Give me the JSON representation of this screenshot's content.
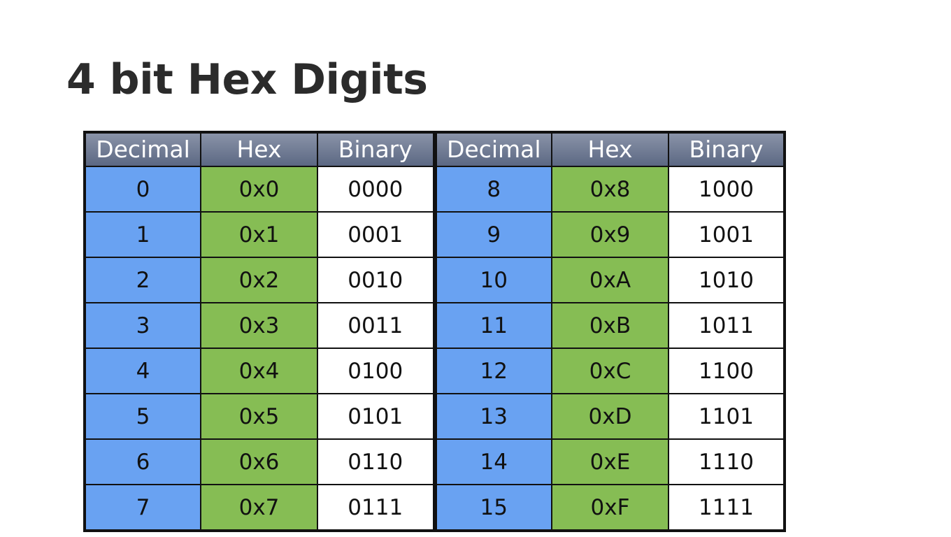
{
  "title": "4 bit Hex Digits",
  "headers": [
    "Decimal",
    "Hex",
    "Binary"
  ],
  "colors": {
    "decimal_cell": "#69a2f2",
    "hex_cell": "#86bd54",
    "binary_cell": "#ffffff",
    "header_bg": "#6f7a93",
    "title_text": "#2b2b2b"
  },
  "left_rows": [
    {
      "decimal": "0",
      "hex": "0x0",
      "binary": "0000"
    },
    {
      "decimal": "1",
      "hex": "0x1",
      "binary": "0001"
    },
    {
      "decimal": "2",
      "hex": "0x2",
      "binary": "0010"
    },
    {
      "decimal": "3",
      "hex": "0x3",
      "binary": "0011"
    },
    {
      "decimal": "4",
      "hex": "0x4",
      "binary": "0100"
    },
    {
      "decimal": "5",
      "hex": "0x5",
      "binary": "0101"
    },
    {
      "decimal": "6",
      "hex": "0x6",
      "binary": "0110"
    },
    {
      "decimal": "7",
      "hex": "0x7",
      "binary": "0111"
    }
  ],
  "right_rows": [
    {
      "decimal": "8",
      "hex": "0x8",
      "binary": "1000"
    },
    {
      "decimal": "9",
      "hex": "0x9",
      "binary": "1001"
    },
    {
      "decimal": "10",
      "hex": "0xA",
      "binary": "1010"
    },
    {
      "decimal": "11",
      "hex": "0xB",
      "binary": "1011"
    },
    {
      "decimal": "12",
      "hex": "0xC",
      "binary": "1100"
    },
    {
      "decimal": "13",
      "hex": "0xD",
      "binary": "1101"
    },
    {
      "decimal": "14",
      "hex": "0xE",
      "binary": "1110"
    },
    {
      "decimal": "15",
      "hex": "0xF",
      "binary": "1111"
    }
  ]
}
